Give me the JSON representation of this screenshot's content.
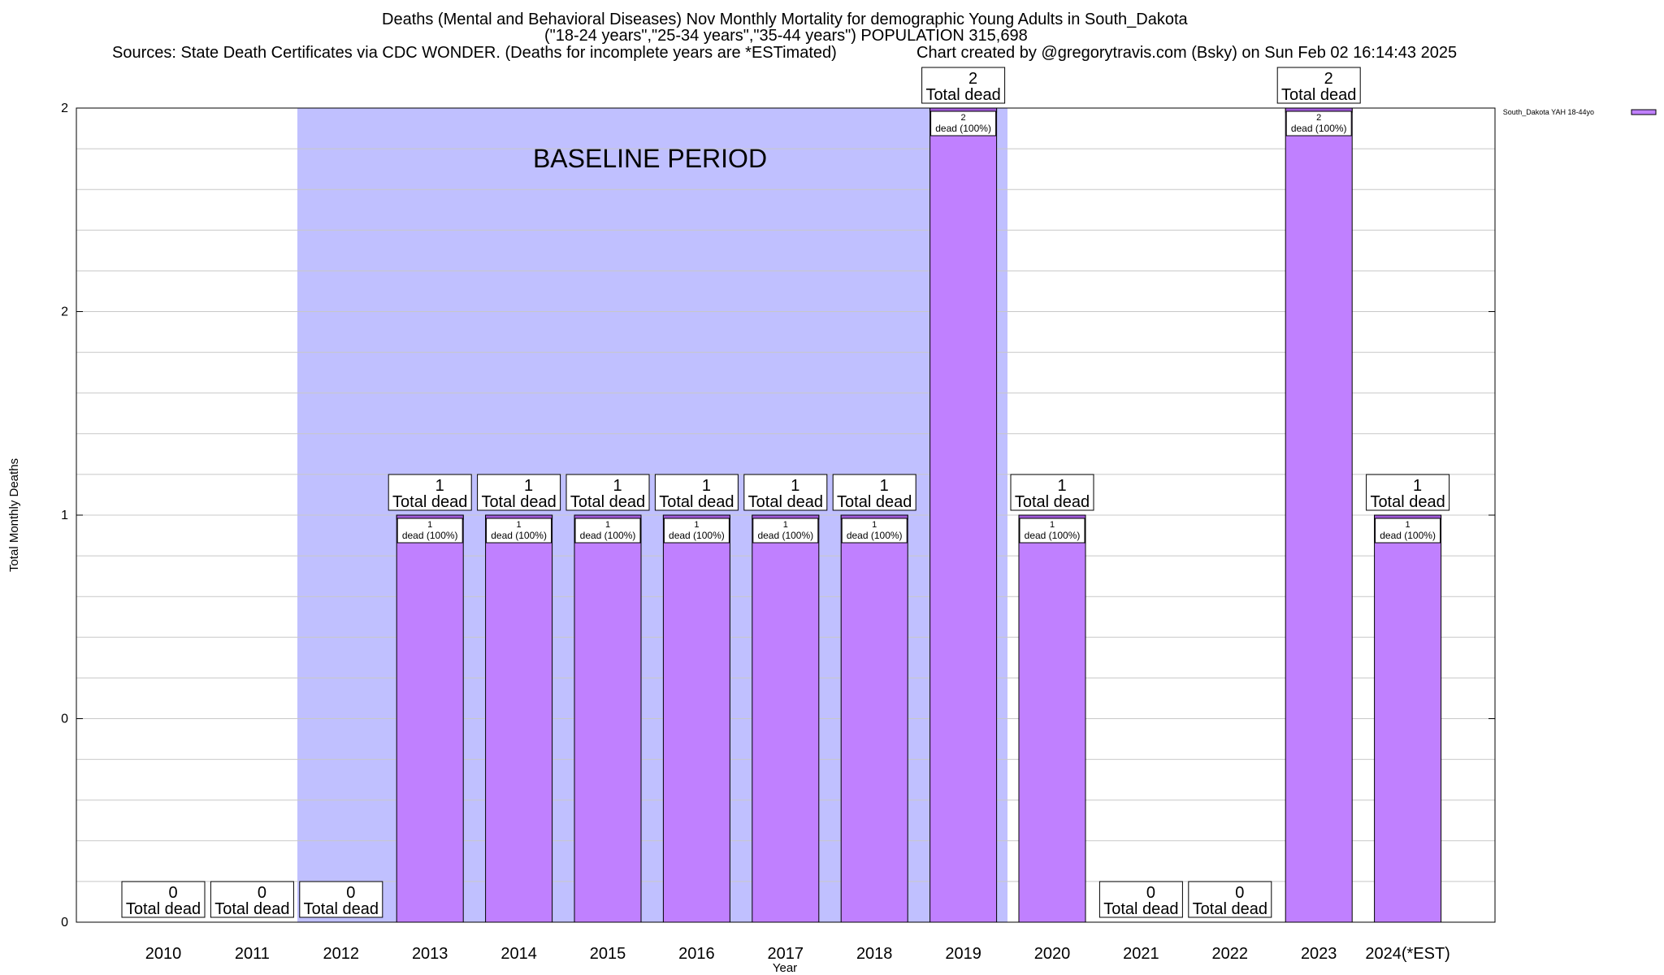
{
  "title": {
    "line1": "Deaths (Mental and Behavioral Diseases) Nov Monthly Mortality for demographic Young Adults in South_Dakota",
    "line2": "(\"18-24 years\",\"25-34 years\",\"35-44 years\") POPULATION 315,698",
    "sources": "Sources: State Death Certificates via CDC WONDER. (Deaths for incomplete years are *ESTimated)",
    "credit": "Chart created by @gregorytravis.com (Bsky) on Sun Feb 02 16:14:43 2025"
  },
  "chart_data": {
    "type": "bar",
    "title": "Deaths (Mental and Behavioral Diseases) Nov Monthly Mortality for demographic Young Adults in South_Dakota",
    "xlabel": "Year",
    "ylabel": "Total Monthly Deaths",
    "categories": [
      "2010",
      "2011",
      "2012",
      "2013",
      "2014",
      "2015",
      "2016",
      "2017",
      "2018",
      "2019",
      "2020",
      "2021",
      "2022",
      "2023",
      "2024(*EST)"
    ],
    "series": [
      {
        "name": "South_Dakota YAH 18-44yo",
        "values": [
          0,
          0,
          0,
          1,
          1,
          1,
          1,
          1,
          1,
          2,
          1,
          0,
          0,
          2,
          1
        ]
      }
    ],
    "total_labels": [
      "0",
      "0",
      "0",
      "1",
      "1",
      "1",
      "1",
      "1",
      "1",
      "2",
      "1",
      "0",
      "0",
      "2",
      "1"
    ],
    "total_caption": "Total dead",
    "inner_labels": [
      "",
      "",
      "",
      "1\ndead (100%)",
      "1\ndead (100%)",
      "1\ndead (100%)",
      "1\ndead (100%)",
      "1\ndead (100%)",
      "1\ndead (100%)",
      "2\ndead (100%)",
      "1\ndead (100%)",
      "",
      "",
      "2\ndead (100%)",
      "1\ndead (100%)"
    ],
    "y_tick_labels": [
      "0",
      "0",
      "1",
      "2",
      "2"
    ],
    "y_tick_values": [
      0,
      0.5,
      1,
      1.5,
      2
    ],
    "ylim": [
      0,
      2
    ],
    "grid": true,
    "baseline": {
      "label": "BASELINE PERIOD",
      "start_category": "2012",
      "end_category": "2019"
    },
    "legend_position": "top-right",
    "colors": {
      "bar": "#c080ff",
      "bar_top": "#a05ad8",
      "baseline": "#c0c0ff",
      "grid": "#c8c8c8"
    }
  }
}
